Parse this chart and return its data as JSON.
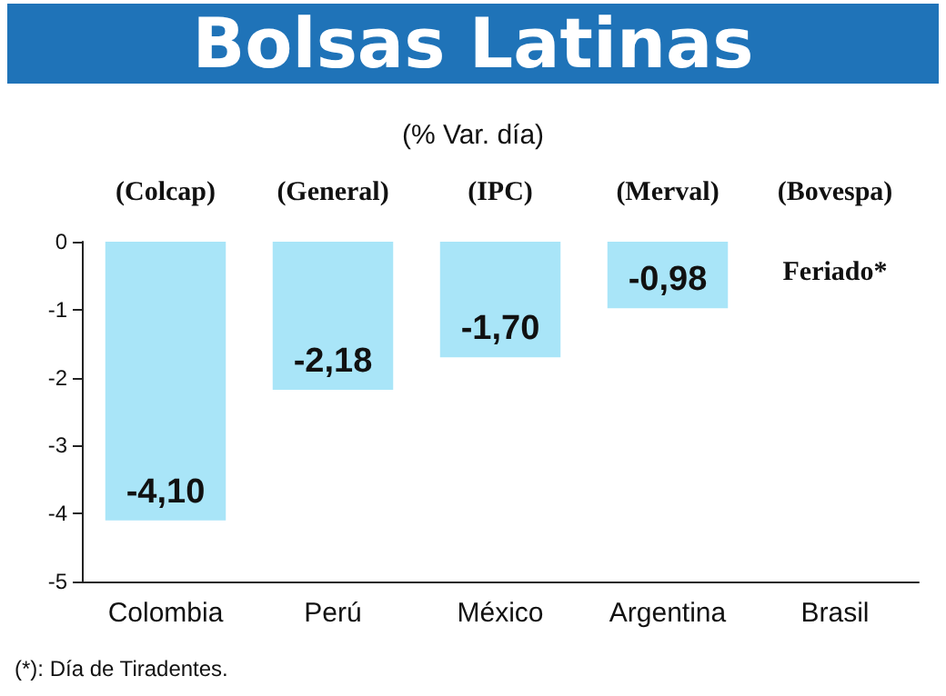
{
  "chart_data": {
    "type": "bar",
    "title": "Bolsas Latinas",
    "subtitle": "(% Var. día)",
    "categories": [
      "Colombia",
      "Perú",
      "México",
      "Argentina",
      "Brasil"
    ],
    "values": [
      -4.1,
      -2.18,
      -1.7,
      -0.98,
      null
    ],
    "value_labels": [
      "-4,10",
      "-2,18",
      "-1,70",
      "-0,98",
      null
    ],
    "color": "#a9e5f8",
    "ylim": [
      -5,
      0
    ],
    "yticks": [
      0,
      -1,
      -2,
      -3,
      -4,
      -5
    ],
    "grid": false,
    "annotations": [
      "(Colcap)",
      "(General)",
      "(IPC)",
      "(Merval)",
      "(Bovespa)",
      "Feriado*",
      "(*): Día de Tiradentes."
    ]
  }
}
